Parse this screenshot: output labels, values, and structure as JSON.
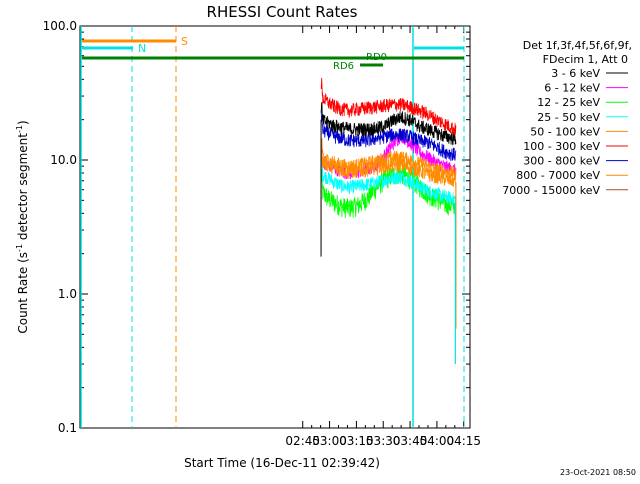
{
  "chart_data": {
    "type": "line",
    "title": "RHESSI Count Rates",
    "xlabel": "Start Time (16-Dec-11 02:39:42)",
    "ylabel_main": "Count Rate (s",
    "ylabel_sup": "-1",
    "ylabel_mid": " detector segment",
    "ylabel_end": ")",
    "footer_date": "23-Oct-2021 08:50",
    "y_scale": "log",
    "xlim_minutes": [
      40.5,
      258.5
    ],
    "ylim": [
      0.1,
      100
    ],
    "x_ticks": [
      {
        "t": 165,
        "label": "02:45"
      },
      {
        "t": 180,
        "label": "03:00"
      },
      {
        "t": 195,
        "label": "03:15"
      },
      {
        "t": 210,
        "label": "03:30"
      },
      {
        "t": 225,
        "label": "03:45"
      },
      {
        "t": 240,
        "label": "04:00"
      },
      {
        "t": 255,
        "label": "04:15"
      }
    ],
    "y_ticks": [
      {
        "v": 100,
        "label": "100.0"
      },
      {
        "v": 10,
        "label": "10.0"
      },
      {
        "v": 1,
        "label": "1.0"
      },
      {
        "v": 0.1,
        "label": "0.1"
      }
    ],
    "legend": {
      "header1": "Det 1f,3f,4f,5f,6f,9f,",
      "header2": "FDecim 1, Att 0",
      "placement": "right"
    },
    "series": [
      {
        "name": "3 - 6 keV",
        "color": "#000000",
        "x": [
          175,
          179,
          183,
          187,
          191,
          196,
          201,
          206,
          211,
          216,
          220,
          225,
          230,
          235,
          240,
          245,
          250,
          255
        ],
        "y": [
          20,
          19,
          18,
          17.5,
          17,
          17,
          17,
          17.2,
          18,
          20,
          21,
          20,
          18,
          17,
          16,
          15,
          14.5,
          14
        ]
      },
      {
        "name": "6 - 12 keV",
        "color": "#ff00ff",
        "x": [
          175,
          179,
          183,
          187,
          191,
          196,
          201,
          206,
          211,
          216,
          220,
          225,
          230,
          235,
          240,
          245,
          250,
          255
        ],
        "y": [
          10,
          9.3,
          8.7,
          8.3,
          8,
          8.2,
          8.6,
          9.3,
          11,
          13.5,
          15.5,
          13.5,
          11.5,
          10.5,
          9.5,
          8.9,
          8.4,
          8
        ]
      },
      {
        "name": "12 - 25 keV",
        "color": "#00ff00",
        "x": [
          175,
          179,
          183,
          187,
          191,
          196,
          201,
          206,
          211,
          216,
          220,
          225,
          230,
          235,
          240,
          245,
          250,
          255
        ],
        "y": [
          6,
          5.2,
          4.8,
          4.5,
          4.4,
          4.6,
          5.2,
          6.2,
          7.2,
          7.8,
          8,
          7.3,
          6.4,
          5.6,
          5.1,
          4.7,
          4.6,
          4.5
        ]
      },
      {
        "name": "25 - 50 keV",
        "color": "#00ffff",
        "x": [
          175,
          179,
          183,
          187,
          191,
          196,
          201,
          206,
          211,
          216,
          220,
          225,
          230,
          235,
          240,
          245,
          250,
          255
        ],
        "y": [
          8,
          7.4,
          6.8,
          6.4,
          6.3,
          6.4,
          6.6,
          6.8,
          7.1,
          7.4,
          7.5,
          7,
          6.4,
          5.9,
          5.6,
          5.3,
          5.1,
          5
        ]
      },
      {
        "name": "50 - 100 keV",
        "color": "#ff8c00",
        "x": [
          175,
          179,
          183,
          187,
          191,
          196,
          201,
          206,
          211,
          216,
          220,
          225,
          230,
          235,
          240,
          245,
          250,
          255
        ],
        "y": [
          10,
          9.2,
          8.7,
          8.4,
          8.2,
          8.3,
          8.5,
          8.7,
          9,
          9.2,
          9.2,
          8.8,
          8.3,
          7.8,
          7.5,
          7.2,
          7,
          6.8
        ]
      },
      {
        "name": "100 - 300 keV",
        "color": "#ff0000",
        "x": [
          175,
          179,
          183,
          187,
          191,
          196,
          201,
          206,
          211,
          216,
          220,
          225,
          230,
          235,
          240,
          245,
          250,
          255
        ],
        "y": [
          30,
          27,
          25,
          24,
          23.5,
          24,
          24.5,
          25,
          25.5,
          26,
          26,
          25,
          23.5,
          22,
          20,
          18.5,
          17,
          16
        ]
      },
      {
        "name": "300 - 800 keV",
        "color": "#0000cd",
        "x": [
          175,
          179,
          183,
          187,
          191,
          196,
          201,
          206,
          211,
          216,
          220,
          225,
          230,
          235,
          240,
          245,
          250,
          255
        ],
        "y": [
          17,
          16,
          15,
          14.5,
          14,
          14,
          14,
          14.5,
          15,
          15.5,
          15.5,
          15,
          14,
          13.5,
          12.5,
          11.5,
          11,
          10.5
        ]
      },
      {
        "name": "800 - 7000 keV",
        "color": "#ff8c00",
        "x": [
          175,
          179,
          183,
          187,
          191,
          196,
          201,
          206,
          211,
          216,
          220,
          225,
          230,
          235,
          240,
          245,
          250,
          255
        ],
        "y": [
          11,
          10,
          9.5,
          9.2,
          9,
          9.2,
          9.5,
          9.8,
          10.2,
          10.5,
          10.5,
          10,
          9.5,
          9,
          8.5,
          8.2,
          8,
          7.8
        ]
      },
      {
        "name": "7000 - 15000 keV",
        "color": "#a0522d",
        "x": [],
        "y": []
      }
    ],
    "annotations": [
      {
        "label": "S",
        "color": "#ff8c00"
      },
      {
        "label": "N",
        "color": "#00ffff"
      },
      {
        "label": "RD6",
        "color": "#008000"
      },
      {
        "label": "RD0",
        "color": "#008000"
      }
    ]
  }
}
